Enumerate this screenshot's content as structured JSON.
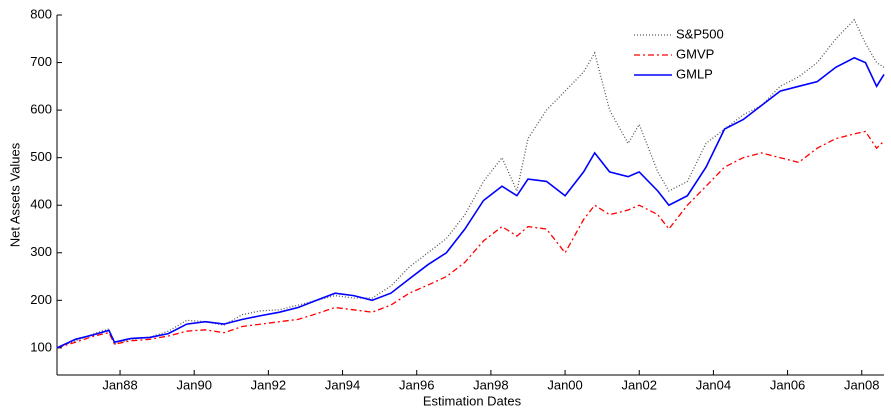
{
  "chart_data": {
    "type": "line",
    "xlabel": "Estimation Dates",
    "ylabel": "Net Assets Values",
    "x": [
      1986.3,
      1986.8,
      1987.3,
      1987.7,
      1987.85,
      1988.3,
      1988.8,
      1989.3,
      1989.8,
      1990.3,
      1990.8,
      1991.3,
      1991.8,
      1992.3,
      1992.8,
      1993.3,
      1993.8,
      1994.3,
      1994.8,
      1995.3,
      1995.8,
      1996.3,
      1996.8,
      1997.3,
      1997.8,
      1998.3,
      1998.7,
      1999.0,
      1999.5,
      2000.0,
      2000.5,
      2000.8,
      2001.2,
      2001.7,
      2002.0,
      2002.5,
      2002.8,
      2003.3,
      2003.8,
      2004.3,
      2004.8,
      2005.3,
      2005.8,
      2006.3,
      2006.8,
      2007.3,
      2007.8,
      2008.1,
      2008.4,
      2008.6
    ],
    "series": [
      {
        "name": "S&P500",
        "color": "#555555",
        "dash": "1,2",
        "values": [
          100,
          115,
          130,
          140,
          108,
          118,
          122,
          135,
          158,
          155,
          148,
          170,
          178,
          180,
          190,
          200,
          210,
          205,
          205,
          230,
          270,
          300,
          330,
          380,
          450,
          500,
          430,
          540,
          600,
          640,
          680,
          720,
          600,
          530,
          570,
          470,
          430,
          450,
          530,
          560,
          590,
          610,
          650,
          670,
          700,
          750,
          790,
          740,
          700,
          690
        ]
      },
      {
        "name": "GMVP",
        "color": "#ff0000",
        "dash": "6,3,2,3",
        "values": [
          100,
          112,
          125,
          132,
          108,
          115,
          118,
          125,
          135,
          138,
          132,
          145,
          150,
          155,
          160,
          172,
          185,
          180,
          175,
          190,
          215,
          232,
          250,
          280,
          325,
          355,
          335,
          355,
          350,
          300,
          370,
          400,
          380,
          390,
          400,
          380,
          350,
          400,
          440,
          480,
          500,
          510,
          500,
          490,
          520,
          540,
          550,
          555,
          520,
          535
        ]
      },
      {
        "name": "GMLP",
        "color": "#0000ff",
        "dash": "",
        "values": [
          100,
          118,
          128,
          137,
          112,
          120,
          122,
          130,
          150,
          155,
          150,
          160,
          168,
          175,
          185,
          200,
          215,
          210,
          200,
          215,
          245,
          275,
          300,
          350,
          410,
          440,
          420,
          455,
          450,
          420,
          470,
          510,
          470,
          460,
          470,
          430,
          400,
          420,
          480,
          560,
          580,
          610,
          640,
          650,
          660,
          690,
          710,
          700,
          650,
          675
        ]
      }
    ],
    "xlim": [
      1986.3,
      2008.6
    ],
    "xticks": [
      {
        "value": 1988,
        "label": "Jan88"
      },
      {
        "value": 1990,
        "label": "Jan90"
      },
      {
        "value": 1992,
        "label": "Jan92"
      },
      {
        "value": 1994,
        "label": "Jan94"
      },
      {
        "value": 1996,
        "label": "Jan96"
      },
      {
        "value": 1998,
        "label": "Jan98"
      },
      {
        "value": 2000,
        "label": "Jan00"
      },
      {
        "value": 2002,
        "label": "Jan02"
      },
      {
        "value": 2004,
        "label": "Jan04"
      },
      {
        "value": 2006,
        "label": "Jan06"
      },
      {
        "value": 2008,
        "label": "Jan08"
      }
    ],
    "ylim": [
      43,
      800
    ],
    "yticks": [
      100,
      200,
      300,
      400,
      500,
      600,
      700,
      800
    ],
    "legend": "top-right"
  }
}
